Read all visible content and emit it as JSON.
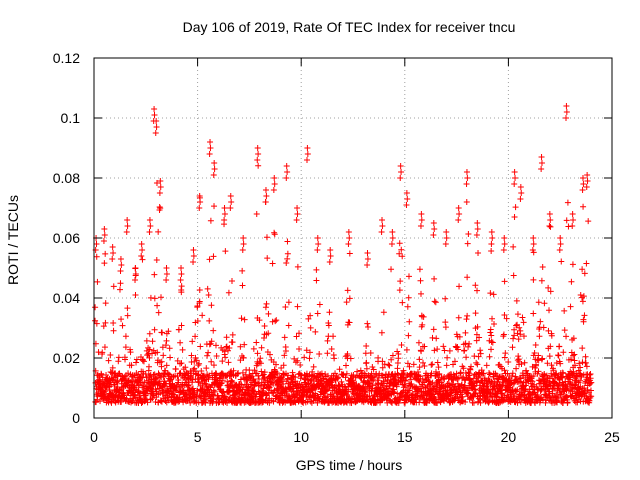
{
  "chart_data": {
    "type": "scatter",
    "title": "Day 106 of 2019, Rate Of TEC Index for receiver tncu",
    "xlabel": "GPS time / hours",
    "ylabel": "ROTI / TECUs",
    "xlim": [
      0,
      25
    ],
    "ylim": [
      0,
      0.12
    ],
    "xticks": [
      "0",
      "5",
      "10",
      "15",
      "20",
      "25"
    ],
    "yticks": [
      "0",
      "0.02",
      "0.04",
      "0.06",
      "0.08",
      "0.1",
      "0.12"
    ],
    "grid": true,
    "marker": "plus",
    "color": "#ff0000",
    "series": [
      {
        "name": "ROTI",
        "data_range_hours": [
          0,
          24
        ],
        "baseline_band": [
          0.005,
          0.015
        ],
        "peaks": [
          [
            0.1,
            0.06
          ],
          [
            0.5,
            0.063
          ],
          [
            0.9,
            0.057
          ],
          [
            1.3,
            0.053
          ],
          [
            1.6,
            0.066
          ],
          [
            2.0,
            0.05
          ],
          [
            2.3,
            0.058
          ],
          [
            2.7,
            0.066
          ],
          [
            2.9,
            0.103
          ],
          [
            3.0,
            0.099
          ],
          [
            3.2,
            0.079
          ],
          [
            3.5,
            0.05
          ],
          [
            4.2,
            0.05
          ],
          [
            4.8,
            0.056
          ],
          [
            5.1,
            0.074
          ],
          [
            5.6,
            0.092
          ],
          [
            5.8,
            0.085
          ],
          [
            6.3,
            0.07
          ],
          [
            6.6,
            0.074
          ],
          [
            7.2,
            0.06
          ],
          [
            7.9,
            0.09
          ],
          [
            8.3,
            0.076
          ],
          [
            8.7,
            0.08
          ],
          [
            9.3,
            0.084
          ],
          [
            9.8,
            0.07
          ],
          [
            10.3,
            0.09
          ],
          [
            10.8,
            0.06
          ],
          [
            11.4,
            0.056
          ],
          [
            12.3,
            0.062
          ],
          [
            13.2,
            0.055
          ],
          [
            13.9,
            0.066
          ],
          [
            14.4,
            0.062
          ],
          [
            14.8,
            0.084
          ],
          [
            15.1,
            0.075
          ],
          [
            15.8,
            0.068
          ],
          [
            16.4,
            0.065
          ],
          [
            17.0,
            0.062
          ],
          [
            17.6,
            0.07
          ],
          [
            18.0,
            0.082
          ],
          [
            18.5,
            0.065
          ],
          [
            19.2,
            0.062
          ],
          [
            19.8,
            0.06
          ],
          [
            20.3,
            0.082
          ],
          [
            20.6,
            0.077
          ],
          [
            21.2,
            0.06
          ],
          [
            21.6,
            0.087
          ],
          [
            22.0,
            0.068
          ],
          [
            22.5,
            0.06
          ],
          [
            22.8,
            0.104
          ],
          [
            23.1,
            0.068
          ],
          [
            23.6,
            0.08
          ],
          [
            23.8,
            0.081
          ]
        ]
      }
    ]
  }
}
